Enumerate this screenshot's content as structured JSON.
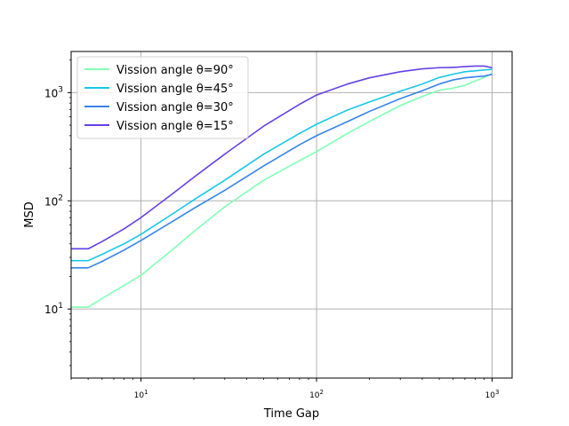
{
  "chart_data": {
    "type": "line",
    "title": "",
    "xlabel": "Time Gap",
    "ylabel": "MSD",
    "xscale": "log",
    "yscale": "log",
    "xlim": [
      4,
      1300
    ],
    "ylim": [
      2.3,
      2400
    ],
    "grid": true,
    "legend_position": "top-left",
    "x_ticks": [
      {
        "value": 10,
        "base": "10",
        "exp": "1"
      },
      {
        "value": 100,
        "base": "10",
        "exp": "2"
      },
      {
        "value": 1000,
        "base": "10",
        "exp": "3"
      }
    ],
    "y_ticks": [
      {
        "value": 10,
        "base": "10",
        "exp": "1"
      },
      {
        "value": 100,
        "base": "10",
        "exp": "2"
      },
      {
        "value": 1000,
        "base": "10",
        "exp": "3"
      }
    ],
    "series": [
      {
        "name": "Vission angle θ=90°",
        "color": "#80ffb4",
        "x": [
          4,
          5,
          6,
          8,
          10,
          15,
          20,
          30,
          50,
          80,
          100,
          150,
          200,
          300,
          400,
          500,
          600,
          700,
          800,
          900,
          1000
        ],
        "y": [
          10.4,
          10.4,
          12.5,
          16.5,
          20.5,
          35,
          52,
          88,
          155,
          235,
          285,
          420,
          540,
          760,
          920,
          1050,
          1100,
          1170,
          1280,
          1380,
          1500
        ]
      },
      {
        "name": "Vission angle θ=45°",
        "color": "#1ac7e8",
        "x": [
          4,
          5,
          6,
          8,
          10,
          15,
          20,
          30,
          50,
          80,
          100,
          150,
          200,
          300,
          400,
          500,
          600,
          700,
          800,
          900,
          1000
        ],
        "y": [
          28,
          28,
          32,
          40,
          49,
          75,
          102,
          155,
          270,
          420,
          510,
          690,
          820,
          1030,
          1200,
          1380,
          1480,
          1560,
          1590,
          1620,
          1640
        ]
      },
      {
        "name": "Vission angle θ=30°",
        "color": "#3584ec",
        "x": [
          4,
          5,
          6,
          8,
          10,
          15,
          20,
          30,
          50,
          80,
          100,
          150,
          200,
          300,
          400,
          500,
          600,
          700,
          800,
          900,
          1000
        ],
        "y": [
          24,
          24,
          27.5,
          35,
          43,
          64,
          85,
          125,
          210,
          330,
          400,
          540,
          670,
          880,
          1040,
          1200,
          1310,
          1370,
          1400,
          1420,
          1480
        ]
      },
      {
        "name": "Vission angle θ=15°",
        "color": "#6440e8",
        "x": [
          4,
          5,
          6,
          8,
          10,
          15,
          20,
          30,
          50,
          80,
          100,
          150,
          200,
          300,
          400,
          500,
          600,
          700,
          800,
          900,
          1000
        ],
        "y": [
          36,
          36,
          42,
          55,
          70,
          115,
          165,
          270,
          490,
          780,
          950,
          1200,
          1370,
          1560,
          1660,
          1700,
          1710,
          1740,
          1760,
          1760,
          1700
        ]
      }
    ]
  }
}
